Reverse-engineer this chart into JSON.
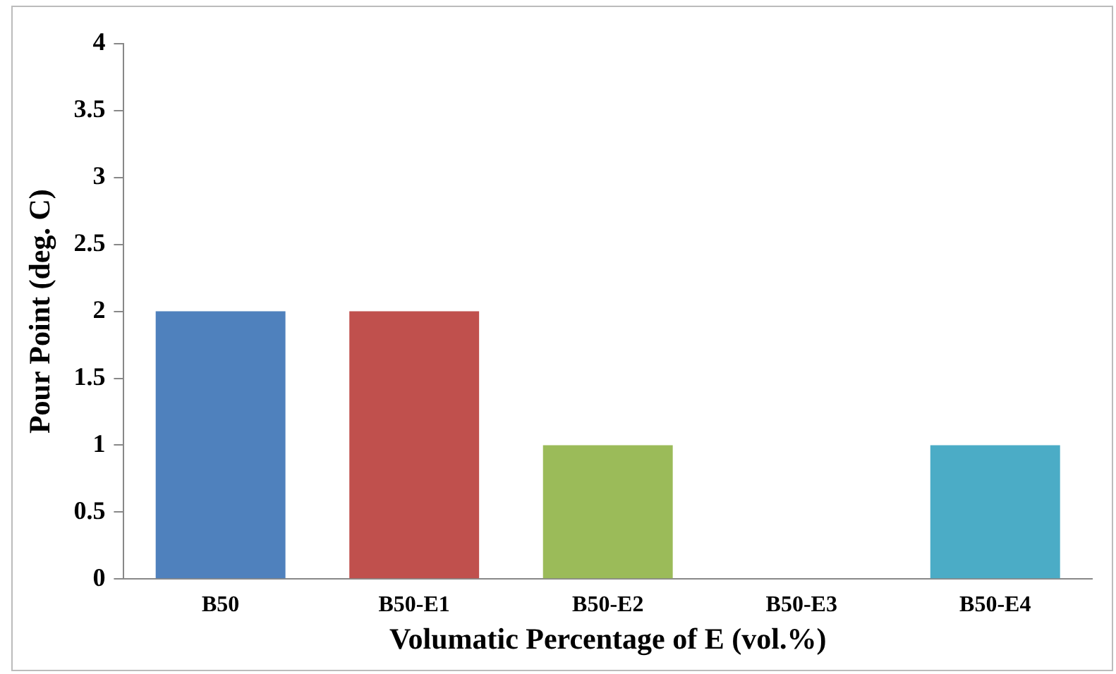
{
  "chart_data": {
    "type": "bar",
    "xlabel": "Volumatic Percentage of E (vol.%)",
    "ylabel": "Pour Point (deg. C)",
    "categories": [
      "B50",
      "B50-E1",
      "B50-E2",
      "B50-E3",
      "B50-E4"
    ],
    "values": [
      2,
      2,
      1,
      0,
      1
    ],
    "colors": [
      "#4f81bd",
      "#c0504d",
      "#9bbb59",
      "#8064a2",
      "#4bacc6"
    ],
    "ylim": [
      0,
      4
    ],
    "yticks": [
      0,
      0.5,
      1,
      1.5,
      2,
      2.5,
      3,
      3.5,
      4
    ],
    "grid": false,
    "legend": false
  }
}
